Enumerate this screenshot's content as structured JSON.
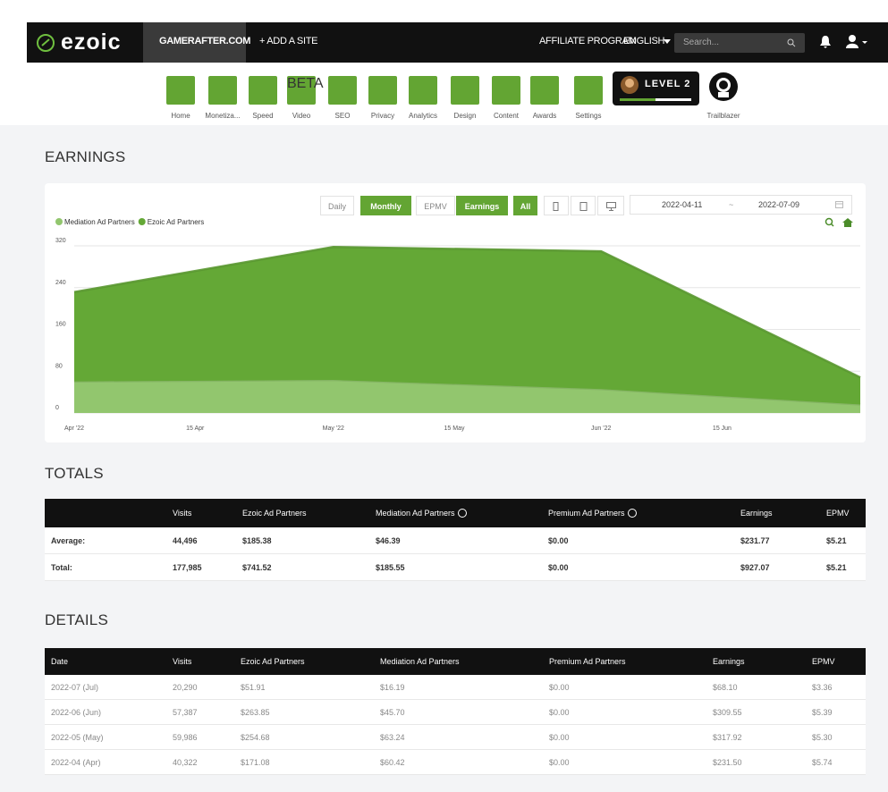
{
  "logo": "ezoic",
  "nav": {
    "site": "GAMERAFTER.COM",
    "add_site": "+ ADD A SITE",
    "affiliate": "AFFILIATE PROGRAM",
    "language": "ENGLISH",
    "search_placeholder": "Search..."
  },
  "toolbar": {
    "items": [
      "Home",
      "Monetiza...",
      "Speed",
      "Video",
      "SEO",
      "Privacy",
      "Analytics",
      "Design",
      "Content",
      "Awards",
      "Settings"
    ],
    "beta": "BETA",
    "level": "LEVEL 2",
    "badge": "Trailblazer"
  },
  "earnings": {
    "heading": "EARNINGS",
    "buttons": [
      "Daily",
      "Monthly",
      "EPMV",
      "Earnings",
      "All"
    ],
    "date_from": "2022-04-11",
    "date_separator": "~",
    "date_to": "2022-07-09"
  },
  "chart_data": {
    "type": "area",
    "stacked": true,
    "grid": true,
    "legend": "top-left",
    "x": [
      "2022-04-01",
      "2022-05-01",
      "2022-06-01",
      "2022-07-01"
    ],
    "xlim": [
      "2022-04-01",
      "2022-07-01"
    ],
    "xticks": [
      {
        "value": "2022-04-01",
        "label": "Apr '22"
      },
      {
        "value": "2022-04-15",
        "label": "15 Apr"
      },
      {
        "value": "2022-05-01",
        "label": "May '22"
      },
      {
        "value": "2022-05-15",
        "label": "15 May"
      },
      {
        "value": "2022-06-01",
        "label": "Jun '22"
      },
      {
        "value": "2022-06-15",
        "label": "15 Jun"
      }
    ],
    "ylim": [
      0,
      320
    ],
    "yticks": [
      0,
      80,
      160,
      240,
      320
    ],
    "series": [
      {
        "name": "Mediation Ad Partners",
        "color": "#92c66e",
        "values": [
          60.42,
          63.24,
          45.7,
          16.19
        ]
      },
      {
        "name": "Ezoic Ad Partners",
        "color": "#64a836",
        "values": [
          171.08,
          254.68,
          263.85,
          51.91
        ]
      }
    ]
  },
  "totals": {
    "heading": "TOTALS",
    "columns": [
      "Visits",
      "Ezoic Ad Partners",
      "Mediation Ad Partners",
      "Premium Ad Partners",
      "Earnings",
      "EPMV"
    ],
    "rows": [
      [
        "Average:",
        "44,496",
        "$185.38",
        "$46.39",
        "$0.00",
        "$231.77",
        "$5.21"
      ],
      [
        "Total:",
        "177,985",
        "$741.52",
        "$185.55",
        "$0.00",
        "$927.07",
        "$5.21"
      ]
    ]
  },
  "details": {
    "heading": "DETAILS",
    "columns": [
      "Date",
      "Visits",
      "Ezoic Ad Partners",
      "Mediation Ad Partners",
      "Premium Ad Partners",
      "Earnings",
      "EPMV"
    ],
    "rows": [
      [
        "2022-07 (Jul)",
        "20,290",
        "$51.91",
        "$16.19",
        "$0.00",
        "$68.10",
        "$3.36"
      ],
      [
        "2022-06 (Jun)",
        "57,387",
        "$263.85",
        "$45.70",
        "$0.00",
        "$309.55",
        "$5.39"
      ],
      [
        "2022-05 (May)",
        "59,986",
        "$254.68",
        "$63.24",
        "$0.00",
        "$317.92",
        "$5.30"
      ],
      [
        "2022-04 (Apr)",
        "40,322",
        "$171.08",
        "$60.42",
        "$0.00",
        "$231.50",
        "$5.74"
      ]
    ]
  }
}
